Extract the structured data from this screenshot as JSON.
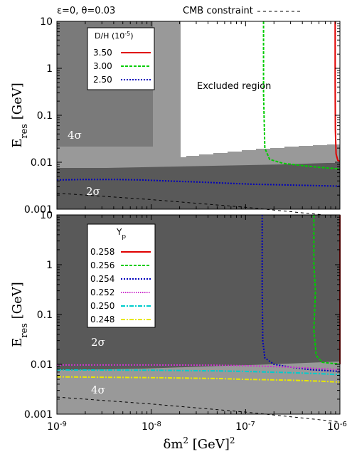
{
  "header": {
    "params": "ε=0, θ=0.03",
    "cmb_label": "CMB constraint"
  },
  "chart_data": [
    {
      "type": "line",
      "panel": "top",
      "xscale": "log",
      "yscale": "log",
      "xlim": [
        1e-09,
        1e-06
      ],
      "ylim": [
        0.001,
        10
      ],
      "xlabel": "δm² [GeV]²",
      "ylabel": "E_res [GeV]",
      "ytick_labels": [
        "10",
        "1",
        "0.1",
        "0.01",
        "0.001"
      ],
      "legend": {
        "title": "D/H (10⁻⁵)",
        "placement": "top-left",
        "entries": [
          {
            "label": "3.50",
            "color": "#e00000",
            "style": "solid"
          },
          {
            "label": "3.00",
            "color": "#00cc00",
            "style": "dashed"
          },
          {
            "label": "2.50",
            "color": "#0000bb",
            "style": "dotted"
          }
        ]
      },
      "regions": [
        {
          "label": "4σ",
          "color": "#999999"
        },
        {
          "label": "2σ",
          "color": "#595959"
        },
        {
          "label": "Excluded region",
          "color": "#ffffff"
        }
      ],
      "series": [
        {
          "name": "3.50",
          "color": "#e00000",
          "x": [
            8.9e-07,
            8.9e-07,
            8.95e-07,
            9.1e-07,
            9.5e-07,
            1e-06
          ],
          "y": [
            10,
            0.5,
            0.05,
            0.015,
            0.011,
            0.0105
          ]
        },
        {
          "name": "3.00",
          "color": "#00cc00",
          "x": [
            1.55e-07,
            1.55e-07,
            1.6e-07,
            1.8e-07,
            2.5e-07,
            4e-07,
            6e-07,
            1e-06
          ],
          "y": [
            10,
            0.3,
            0.02,
            0.0115,
            0.0095,
            0.0085,
            0.0078,
            0.0072
          ]
        },
        {
          "name": "2.50",
          "color": "#0000bb",
          "x": [
            1e-09,
            2e-09,
            4e-09,
            8e-09,
            1.5e-08,
            3e-08,
            6e-08,
            1.2e-07,
            2.5e-07,
            5e-07,
            1e-06
          ],
          "y": [
            0.0042,
            0.0043,
            0.0043,
            0.0042,
            0.004,
            0.0038,
            0.0036,
            0.0034,
            0.0033,
            0.0032,
            0.0031
          ]
        },
        {
          "name": "CMB constraint",
          "color": "#000000",
          "x": [
            1e-09,
            1e-08,
            1e-07,
            1e-06
          ],
          "y": [
            0.0022,
            0.0016,
            0.0011,
            0.0007
          ]
        }
      ]
    },
    {
      "type": "line",
      "panel": "bottom",
      "xscale": "log",
      "yscale": "log",
      "xlim": [
        1e-09,
        1e-06
      ],
      "ylim": [
        0.001,
        10
      ],
      "xlabel": "δm² [GeV]²",
      "ylabel": "E_res [GeV]",
      "xtick_labels": [
        "10⁻⁹",
        "10⁻⁸",
        "10⁻⁷",
        "10⁻⁶"
      ],
      "ytick_labels": [
        "10",
        "1",
        "0.1",
        "0.01",
        "0.001"
      ],
      "legend": {
        "title": "Yp",
        "placement": "top-left",
        "entries": [
          {
            "label": "0.258",
            "color": "#e00000",
            "style": "solid"
          },
          {
            "label": "0.256",
            "color": "#00cc00",
            "style": "dashed"
          },
          {
            "label": "0.254",
            "color": "#0000bb",
            "style": "dotted"
          },
          {
            "label": "0.252",
            "color": "#cc33cc",
            "style": "dotted"
          },
          {
            "label": "0.250",
            "color": "#00cccc",
            "style": "dashdot"
          },
          {
            "label": "0.248",
            "color": "#e8e800",
            "style": "dashdot"
          }
        ]
      },
      "regions": [
        {
          "label": "2σ",
          "color": "#595959"
        },
        {
          "label": "4σ",
          "color": "#999999"
        }
      ],
      "series": [
        {
          "name": "0.258",
          "color": "#990000",
          "x": [
            1e-06,
            1e-06
          ],
          "y": [
            10,
            0.01
          ]
        },
        {
          "name": "0.256",
          "color": "#00cc00",
          "x": [
            5.3e-07,
            5.3e-07,
            5.5e-07,
            5.3e-07,
            5.6e-07,
            6.5e-07,
            8e-07,
            1e-06
          ],
          "y": [
            10,
            1,
            0.3,
            0.05,
            0.015,
            0.011,
            0.0105,
            0.0102
          ]
        },
        {
          "name": "0.254",
          "color": "#0000bb",
          "x": [
            1.5e-07,
            1.5e-07,
            1.52e-07,
            1.6e-07,
            2e-07,
            3e-07,
            5e-07,
            1e-06
          ],
          "y": [
            10,
            0.3,
            0.03,
            0.0135,
            0.01,
            0.0088,
            0.0078,
            0.0072
          ]
        },
        {
          "name": "0.252",
          "color": "#cc33cc",
          "x": [
            1e-09,
            1e-08,
            5e-08,
            1e-07,
            3e-07,
            6e-07,
            1e-06
          ],
          "y": [
            0.0097,
            0.0097,
            0.0096,
            0.0094,
            0.0088,
            0.0082,
            0.0078
          ]
        },
        {
          "name": "0.250",
          "color": "#00cccc",
          "x": [
            1e-09,
            1e-08,
            5e-08,
            1e-07,
            3e-07,
            6e-07,
            1e-06
          ],
          "y": [
            0.0077,
            0.0076,
            0.0074,
            0.0072,
            0.0068,
            0.0065,
            0.0062
          ]
        },
        {
          "name": "0.248",
          "color": "#e8e800",
          "x": [
            1e-09,
            1e-08,
            5e-08,
            1e-07,
            3e-07,
            6e-07,
            1e-06
          ],
          "y": [
            0.0056,
            0.0054,
            0.0052,
            0.005,
            0.0048,
            0.0046,
            0.0044
          ]
        },
        {
          "name": "CMB constraint",
          "color": "#000000",
          "x": [
            1e-09,
            1e-08,
            1e-07,
            1e-06
          ],
          "y": [
            0.0022,
            0.0016,
            0.0011,
            0.0007
          ]
        }
      ]
    }
  ]
}
